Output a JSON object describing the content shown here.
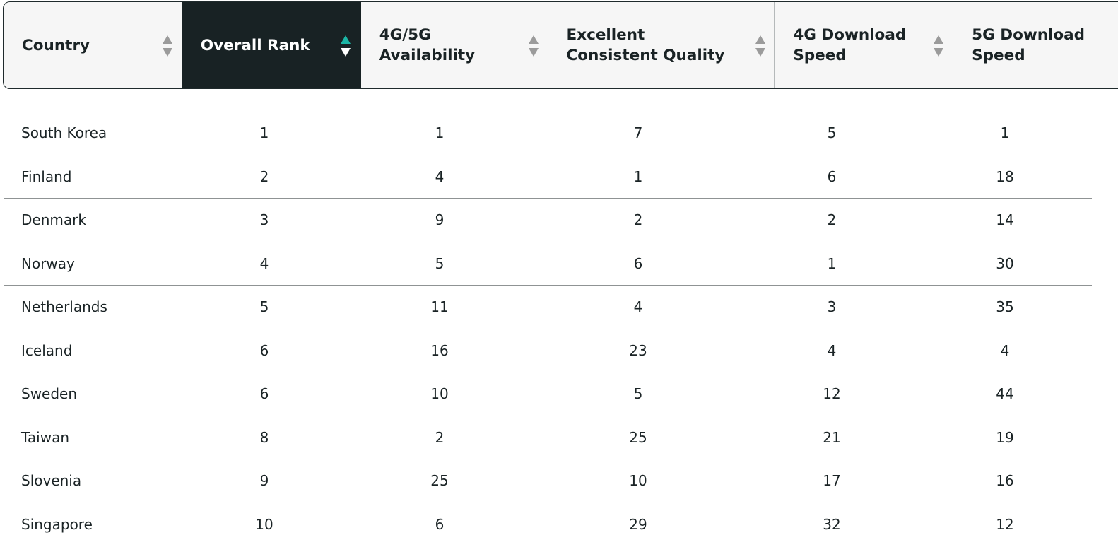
{
  "table": {
    "headers": [
      {
        "label": "Country",
        "sorted": false
      },
      {
        "label": "Overall Rank",
        "sorted": true,
        "direction": "ascending"
      },
      {
        "label": "4G/5G Availability",
        "sorted": false
      },
      {
        "label": "Excellent Consistent Quality",
        "sorted": false
      },
      {
        "label": "4G Download Speed",
        "sorted": false
      },
      {
        "label": "5G Download Speed",
        "sorted": false
      }
    ],
    "rows": [
      [
        "South Korea",
        "1",
        "1",
        "7",
        "5",
        "1"
      ],
      [
        "Finland",
        "2",
        "4",
        "1",
        "6",
        "18"
      ],
      [
        "Denmark",
        "3",
        "9",
        "2",
        "2",
        "14"
      ],
      [
        "Norway",
        "4",
        "5",
        "6",
        "1",
        "30"
      ],
      [
        "Netherlands",
        "5",
        "11",
        "4",
        "3",
        "35"
      ],
      [
        "Iceland",
        "6",
        "16",
        "23",
        "4",
        "4"
      ],
      [
        "Sweden",
        "6",
        "10",
        "5",
        "12",
        "44"
      ],
      [
        "Taiwan",
        "8",
        "2",
        "25",
        "21",
        "19"
      ],
      [
        "Slovenia",
        "9",
        "25",
        "10",
        "17",
        "16"
      ],
      [
        "Singapore",
        "10",
        "6",
        "29",
        "32",
        "12"
      ]
    ]
  },
  "colors": {
    "sorted_header_bg": "#182224",
    "sort_active_up": "#1bb5a5",
    "header_bg": "#f6f6f6"
  }
}
